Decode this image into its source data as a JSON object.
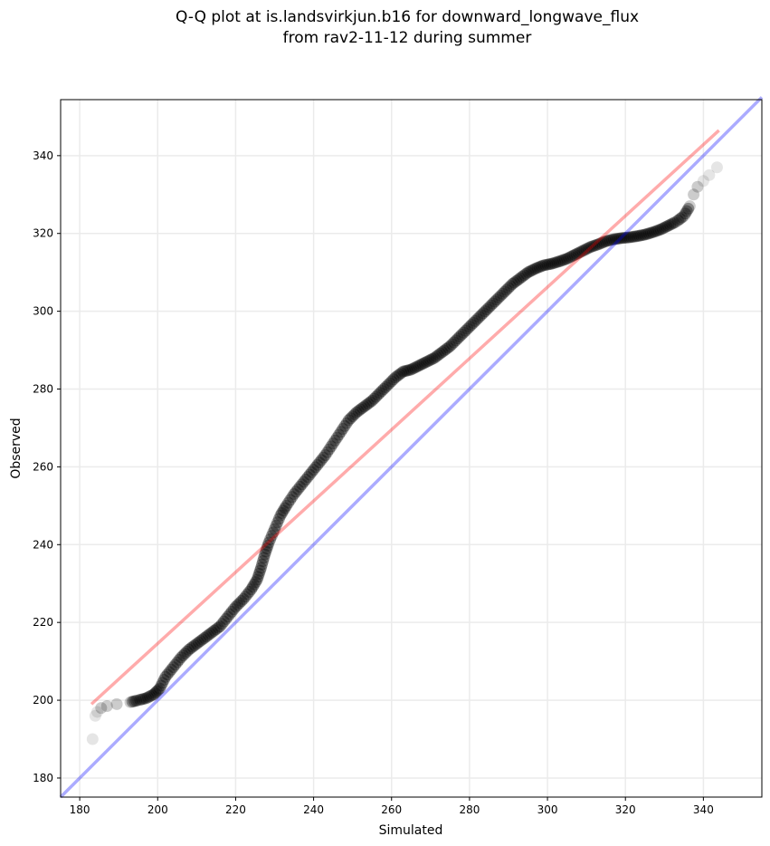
{
  "chart_data": {
    "type": "scatter",
    "title_line1": "Q-Q plot at is.landsvirkjun.b16 for downward_longwave_flux",
    "title_line2": "from rav2-11-12 during summer",
    "xlabel": "Simulated",
    "ylabel": "Observed",
    "xlim": [
      175.1,
      355.0
    ],
    "ylim": [
      175.1,
      354.4
    ],
    "xticks": [
      180,
      200,
      220,
      240,
      260,
      280,
      300,
      320,
      340
    ],
    "yticks": [
      180,
      200,
      220,
      240,
      260,
      280,
      300,
      320,
      340
    ],
    "grid": true,
    "points": [
      [
        183.3,
        190
      ],
      [
        184,
        196
      ],
      [
        184.5,
        197
      ],
      [
        185.5,
        198
      ],
      [
        187,
        198.5
      ],
      [
        189.5,
        199
      ],
      [
        193,
        199.5
      ],
      [
        195,
        200
      ],
      [
        197,
        200.5
      ],
      [
        199,
        201.5
      ],
      [
        200.5,
        203
      ],
      [
        202,
        206
      ],
      [
        204,
        208.5
      ],
      [
        206,
        211
      ],
      [
        208,
        213
      ],
      [
        210,
        214.5
      ],
      [
        212,
        216
      ],
      [
        214,
        217.5
      ],
      [
        216,
        219
      ],
      [
        218,
        221.5
      ],
      [
        220,
        224
      ],
      [
        222,
        226
      ],
      [
        224,
        228.5
      ],
      [
        225.5,
        231
      ],
      [
        226.5,
        234
      ],
      [
        227.5,
        237.5
      ],
      [
        228.5,
        240.5
      ],
      [
        230,
        244
      ],
      [
        231.5,
        247.5
      ],
      [
        233,
        250
      ],
      [
        235,
        253
      ],
      [
        237,
        255.5
      ],
      [
        239,
        258
      ],
      [
        241,
        260.5
      ],
      [
        243,
        263
      ],
      [
        245,
        266
      ],
      [
        247,
        269
      ],
      [
        249,
        272
      ],
      [
        251,
        274
      ],
      [
        253,
        275.5
      ],
      [
        255,
        277
      ],
      [
        257,
        279
      ],
      [
        259,
        281
      ],
      [
        261,
        283
      ],
      [
        263,
        284.5
      ],
      [
        265,
        285
      ],
      [
        267,
        286
      ],
      [
        269,
        287
      ],
      [
        271,
        288
      ],
      [
        273,
        289.5
      ],
      [
        275,
        291
      ],
      [
        277,
        293
      ],
      [
        279,
        295
      ],
      [
        281,
        297
      ],
      [
        283,
        299
      ],
      [
        285,
        301
      ],
      [
        287,
        303
      ],
      [
        289,
        305
      ],
      [
        291,
        307
      ],
      [
        293,
        308.5
      ],
      [
        295,
        310
      ],
      [
        297,
        311
      ],
      [
        299,
        311.8
      ],
      [
        301,
        312.2
      ],
      [
        303,
        312.8
      ],
      [
        305,
        313.5
      ],
      [
        307,
        314.5
      ],
      [
        309,
        315.5
      ],
      [
        311,
        316.5
      ],
      [
        313,
        317.2
      ],
      [
        315,
        318
      ],
      [
        317,
        318.5
      ],
      [
        319,
        318.8
      ],
      [
        321,
        319
      ],
      [
        323,
        319.3
      ],
      [
        325,
        319.7
      ],
      [
        327,
        320.3
      ],
      [
        329,
        321
      ],
      [
        331,
        322
      ],
      [
        333,
        323
      ],
      [
        335,
        324.5
      ],
      [
        336.5,
        327
      ],
      [
        337.5,
        330
      ],
      [
        338.5,
        332
      ],
      [
        340,
        333.5
      ],
      [
        341.5,
        335
      ],
      [
        343.5,
        337
      ]
    ],
    "series_lines": [
      {
        "name": "fit",
        "color": "#ff0000",
        "x": [
          183.0,
          344.0
        ],
        "y": [
          199.0,
          346.5
        ]
      },
      {
        "name": "identity",
        "color": "#0000ff",
        "x": [
          175.1,
          355.0
        ],
        "y": [
          175.1,
          355.0
        ]
      }
    ]
  }
}
